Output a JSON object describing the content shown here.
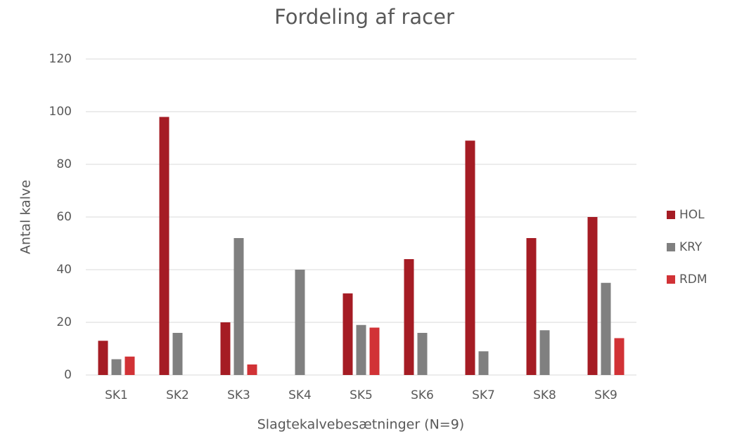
{
  "chart_data": {
    "type": "bar",
    "title": "Fordeling af racer",
    "x_label": "Slagtekalvebesætninger (N=9)",
    "y_label": "Antal kalve",
    "categories": [
      "SK1",
      "SK2",
      "SK3",
      "SK4",
      "SK5",
      "SK6",
      "SK7",
      "SK8",
      "SK9"
    ],
    "series": [
      {
        "name": "HOL",
        "color": "#a51c24",
        "values": [
          13,
          98,
          20,
          0,
          31,
          44,
          89,
          52,
          60
        ]
      },
      {
        "name": "KRY",
        "color": "#808080",
        "values": [
          6,
          16,
          52,
          40,
          19,
          16,
          9,
          17,
          35
        ]
      },
      {
        "name": "RDM",
        "color": "#d13236",
        "values": [
          7,
          0,
          4,
          0,
          18,
          0,
          0,
          0,
          14
        ]
      }
    ],
    "ylim": [
      0,
      120
    ],
    "yticks": [
      0,
      20,
      40,
      60,
      80,
      100,
      120
    ],
    "grid": true,
    "legend": "right"
  }
}
